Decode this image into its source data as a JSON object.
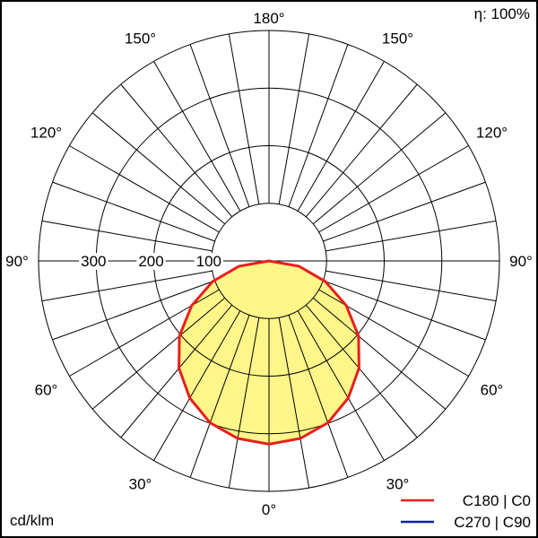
{
  "chart_data": {
    "type": "polar",
    "efficiency_label": "η: 100%",
    "unit_label": "cd/klm",
    "radial_range": [
      0,
      400
    ],
    "radial_ticks": [
      100,
      200,
      300
    ],
    "radial_tick_labels": [
      "100",
      "200",
      "300"
    ],
    "angle_labels": [
      {
        "text": "180°",
        "angle": 180,
        "side": "center"
      },
      {
        "text": "150°",
        "angle": 150,
        "side": "left"
      },
      {
        "text": "150°",
        "angle": 150,
        "side": "right"
      },
      {
        "text": "120°",
        "angle": 120,
        "side": "left"
      },
      {
        "text": "120°",
        "angle": 120,
        "side": "right"
      },
      {
        "text": "90°",
        "angle": 90,
        "side": "left"
      },
      {
        "text": "90°",
        "angle": 90,
        "side": "right"
      },
      {
        "text": "60°",
        "angle": 60,
        "side": "left"
      },
      {
        "text": "60°",
        "angle": 60,
        "side": "right"
      },
      {
        "text": "30°",
        "angle": 30,
        "side": "left"
      },
      {
        "text": "30°",
        "angle": 30,
        "side": "right"
      },
      {
        "text": "0°",
        "angle": 0,
        "side": "center"
      }
    ],
    "grid": true,
    "legend_position": "bottom-right",
    "series": [
      {
        "name": "C180 | C0",
        "color": "#e8201c",
        "fill": "#fff68a",
        "angles": [
          0,
          10,
          20,
          30,
          40,
          50,
          60,
          70,
          80,
          90
        ],
        "values": [
          318,
          313,
          299,
          275,
          243,
          203,
          155,
          104,
          53,
          0
        ]
      },
      {
        "name": "C270 | C90",
        "color": "#1020a8",
        "angles": [
          0,
          10,
          20,
          30,
          40,
          50,
          60,
          70,
          80,
          90
        ],
        "values": [
          318,
          313,
          299,
          275,
          243,
          203,
          155,
          104,
          53,
          0
        ]
      }
    ]
  }
}
